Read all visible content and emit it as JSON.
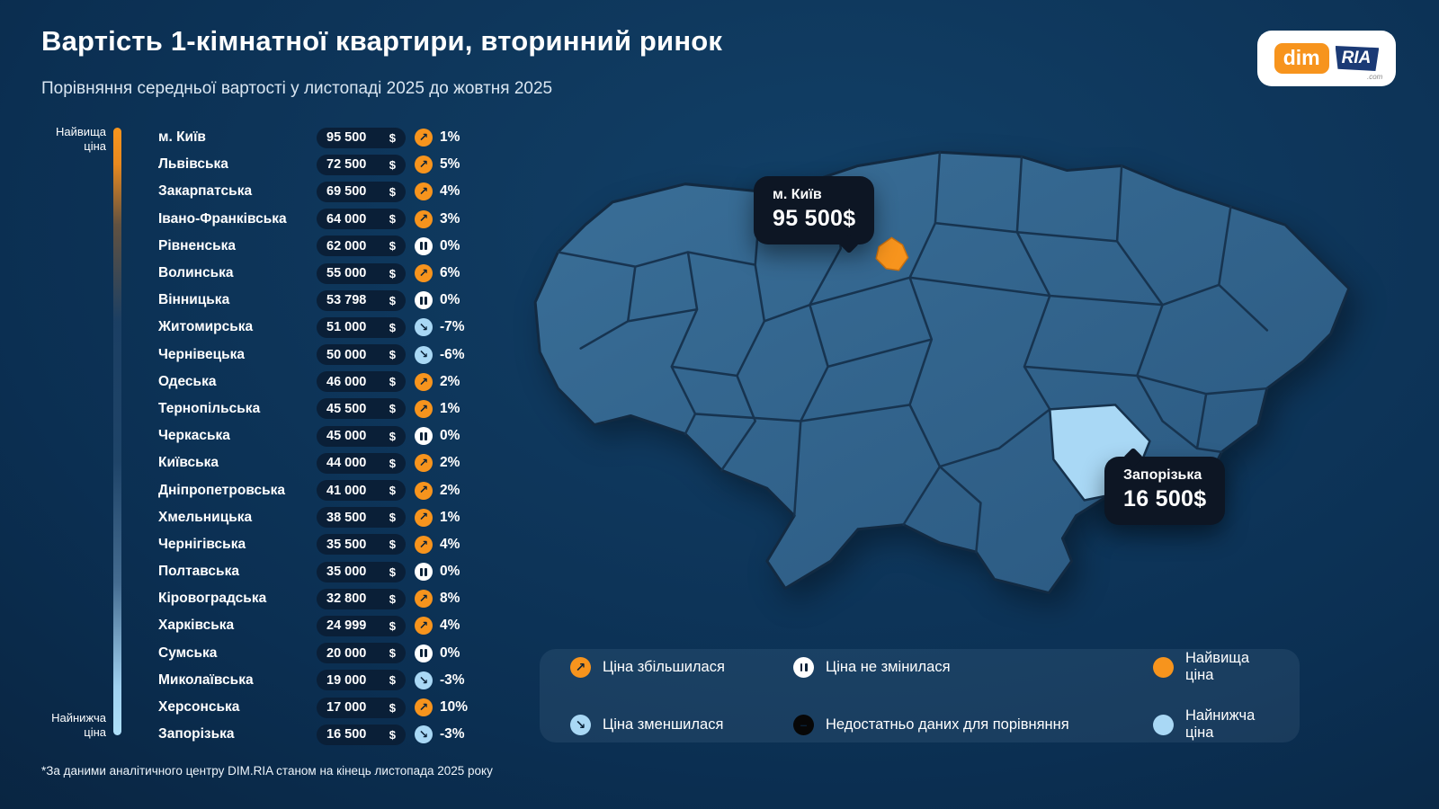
{
  "page": {
    "title": "Вартість 1-кімнатної квартири, вторинний ринок",
    "subtitle": "Порівняння середньої вартості у листопаді 2025 до жовтня 2025",
    "footnote": "*За даними аналітичного центру DIM.RIA станом на кінець листопада 2025 року"
  },
  "logo": {
    "dim": "dim",
    "ria": "RIA",
    "com": ".com"
  },
  "scale": {
    "top": "Найвища ціна",
    "bottom": "Найнижча ціна"
  },
  "regions": [
    {
      "name": "м. Київ",
      "price": "95 500",
      "currency": "$",
      "trend": "up",
      "change": "1%"
    },
    {
      "name": "Львівська",
      "price": "72 500",
      "currency": "$",
      "trend": "up",
      "change": "5%"
    },
    {
      "name": "Закарпатська",
      "price": "69 500",
      "currency": "$",
      "trend": "up",
      "change": "4%"
    },
    {
      "name": "Івано-Франківська",
      "price": "64 000",
      "currency": "$",
      "trend": "up",
      "change": "3%"
    },
    {
      "name": "Рівненська",
      "price": "62 000",
      "currency": "$",
      "trend": "flat",
      "change": "0%"
    },
    {
      "name": "Волинська",
      "price": "55 000",
      "currency": "$",
      "trend": "up",
      "change": "6%"
    },
    {
      "name": "Вінницька",
      "price": "53 798",
      "currency": "$",
      "trend": "flat",
      "change": "0%"
    },
    {
      "name": "Житомирська",
      "price": "51 000",
      "currency": "$",
      "trend": "down",
      "change": "-7%"
    },
    {
      "name": "Чернівецька",
      "price": "50 000",
      "currency": "$",
      "trend": "down",
      "change": "-6%"
    },
    {
      "name": "Одеська",
      "price": "46 000",
      "currency": "$",
      "trend": "up",
      "change": "2%"
    },
    {
      "name": "Тернопільська",
      "price": "45 500",
      "currency": "$",
      "trend": "up",
      "change": "1%"
    },
    {
      "name": "Черкаська",
      "price": "45 000",
      "currency": "$",
      "trend": "flat",
      "change": "0%"
    },
    {
      "name": "Київська",
      "price": "44 000",
      "currency": "$",
      "trend": "up",
      "change": "2%"
    },
    {
      "name": "Дніпропетровська",
      "price": "41 000",
      "currency": "$",
      "trend": "up",
      "change": "2%"
    },
    {
      "name": "Хмельницька",
      "price": "38 500",
      "currency": "$",
      "trend": "up",
      "change": "1%"
    },
    {
      "name": "Чернігівська",
      "price": "35 500",
      "currency": "$",
      "trend": "up",
      "change": "4%"
    },
    {
      "name": "Полтавська",
      "price": "35 000",
      "currency": "$",
      "trend": "flat",
      "change": "0%"
    },
    {
      "name": "Кіровоградська",
      "price": "32 800",
      "currency": "$",
      "trend": "up",
      "change": "8%"
    },
    {
      "name": "Харківська",
      "price": "24 999",
      "currency": "$",
      "trend": "up",
      "change": "4%"
    },
    {
      "name": "Сумська",
      "price": "20 000",
      "currency": "$",
      "trend": "flat",
      "change": "0%"
    },
    {
      "name": "Миколаївська",
      "price": "19 000",
      "currency": "$",
      "trend": "down",
      "change": "-3%"
    },
    {
      "name": "Херсонська",
      "price": "17 000",
      "currency": "$",
      "trend": "up",
      "change": "10%"
    },
    {
      "name": "Запорізька",
      "price": "16 500",
      "currency": "$",
      "trend": "down",
      "change": "-3%"
    }
  ],
  "chart_data": {
    "type": "table",
    "title": "Вартість 1-кімнатної квартири, вторинний ринок",
    "subtitle": "Порівняння середньої вартості у листопаді 2025 до жовтня 2025",
    "unit": "$",
    "categories": [
      "м. Київ",
      "Львівська",
      "Закарпатська",
      "Івано-Франківська",
      "Рівненська",
      "Волинська",
      "Вінницька",
      "Житомирська",
      "Чернівецька",
      "Одеська",
      "Тернопільська",
      "Черкаська",
      "Київська",
      "Дніпропетровська",
      "Хмельницька",
      "Чернігівська",
      "Полтавська",
      "Кіровоградська",
      "Харківська",
      "Сумська",
      "Миколаївська",
      "Херсонська",
      "Запорізька"
    ],
    "values": [
      95500,
      72500,
      69500,
      64000,
      62000,
      55000,
      53798,
      51000,
      50000,
      46000,
      45500,
      45000,
      44000,
      41000,
      38500,
      35500,
      35000,
      32800,
      24999,
      20000,
      19000,
      17000,
      16500
    ],
    "change_percent": [
      1,
      5,
      4,
      3,
      0,
      6,
      0,
      -7,
      -6,
      2,
      1,
      0,
      2,
      2,
      1,
      4,
      0,
      8,
      4,
      0,
      -3,
      10,
      -3
    ],
    "highest": {
      "name": "м. Київ",
      "value": 95500
    },
    "lowest": {
      "name": "Запорізька",
      "value": 16500
    }
  },
  "map": {
    "callouts": [
      {
        "title": "м. Київ",
        "value": "95 500$"
      },
      {
        "title": "Запорізька",
        "value": "16 500$"
      }
    ]
  },
  "legend": {
    "items": [
      {
        "type": "up",
        "label": "Ціна збільшилася"
      },
      {
        "type": "flat",
        "label": "Ціна не змінилася"
      },
      {
        "type": "highest",
        "label": "Найвища ціна"
      },
      {
        "type": "down",
        "label": "Ціна зменшилася"
      },
      {
        "type": "nodata",
        "label": "Недостатньо даних для порівняння"
      },
      {
        "type": "lowest",
        "label": "Найнижча ціна"
      }
    ]
  },
  "colors": {
    "background": "#0B2F52",
    "accent_orange": "#F7941D",
    "accent_lightblue": "#A9D8F5",
    "map_fill": "#31618A",
    "pill": "#0A1F37",
    "callout": "#0D1624"
  }
}
